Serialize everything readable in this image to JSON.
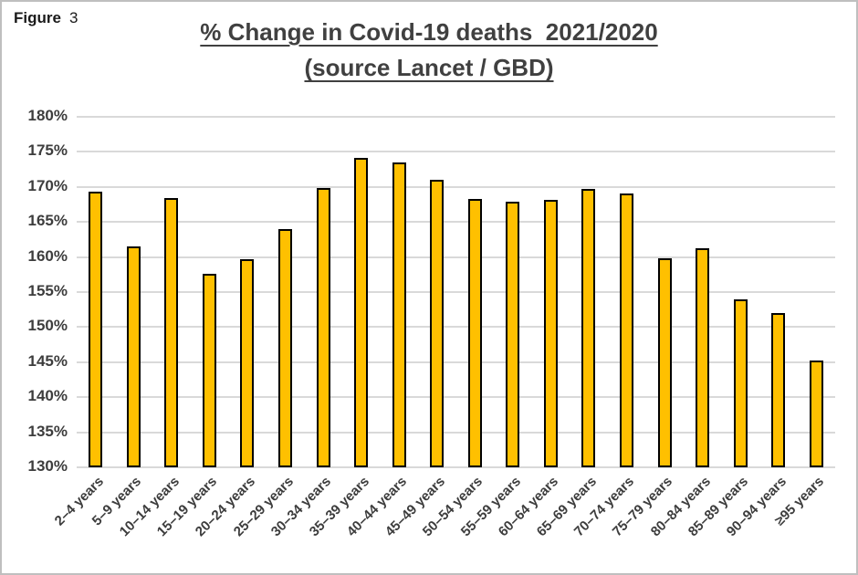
{
  "figure_label": {
    "prefix": "Figure",
    "number": "3"
  },
  "chart_data": {
    "type": "bar",
    "title": "% Change in Covid-19 deaths  2021/2020",
    "subtitle": "(source Lancet / GBD)",
    "xlabel": "",
    "ylabel": "",
    "categories": [
      "2–4 years",
      "5–9 years",
      "10–14 years",
      "15–19 years",
      "20–24 years",
      "25–29 years",
      "30–34 years",
      "35–39 years",
      "40–44 years",
      "45–49 years",
      "50–54 years",
      "55–59 years",
      "60–64 years",
      "65–69 years",
      "70–74 years",
      "75–79 years",
      "80–84 years",
      "85–89 years",
      "90–94 years",
      "≥95 years"
    ],
    "values": [
      169.3,
      161.5,
      168.4,
      157.6,
      159.7,
      164.0,
      169.8,
      174.1,
      173.5,
      171.0,
      168.3,
      167.9,
      168.2,
      169.7,
      169.1,
      159.8,
      161.3,
      154.0,
      152.0,
      145.2
    ],
    "ylim": [
      130,
      180
    ],
    "ytick_step": 5,
    "yticks": [
      130,
      135,
      140,
      145,
      150,
      155,
      160,
      165,
      170,
      175,
      180
    ],
    "ytick_labels": [
      "130%",
      "135%",
      "140%",
      "145%",
      "150%",
      "155%",
      "160%",
      "165%",
      "170%",
      "175%",
      "180%"
    ],
    "grid": true,
    "legend": false,
    "colors": {
      "bar_fill": "#FFC000",
      "bar_border": "#000000",
      "gridline": "#D9D9D9",
      "title_text": "#404040",
      "axis_text": "#3D3D3D",
      "figure_label_text": "#1A1A1A",
      "frame_border": "#BFBFBF",
      "background": "#FFFFFF"
    }
  }
}
